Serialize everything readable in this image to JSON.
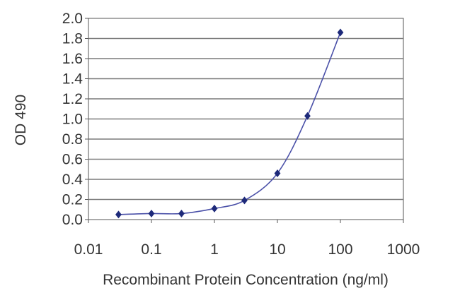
{
  "chart_data": {
    "type": "line",
    "xlabel": "Recombinant Protein Concentration (ng/ml)",
    "ylabel": "OD 490",
    "x_scale": "log",
    "xlim": [
      0.01,
      1000
    ],
    "ylim": [
      0.0,
      2.0
    ],
    "x_ticks": [
      "0.01",
      "0.1",
      "1",
      "10",
      "100",
      "1000"
    ],
    "y_ticks": [
      "0.0",
      "0.2",
      "0.4",
      "0.6",
      "0.8",
      "1.0",
      "1.2",
      "1.4",
      "1.6",
      "1.8",
      "2.0"
    ],
    "grid": "horizontal",
    "colors": {
      "series": "#4a50a8",
      "marker": "#1e2a7a",
      "grid": "#7a7a7a",
      "plot_background": "#ffffff"
    },
    "series": [
      {
        "x": [
          0.03,
          0.1,
          0.3,
          1,
          3,
          10,
          30,
          100
        ],
        "y": [
          0.05,
          0.06,
          0.06,
          0.11,
          0.19,
          0.46,
          1.03,
          1.86
        ]
      }
    ]
  }
}
